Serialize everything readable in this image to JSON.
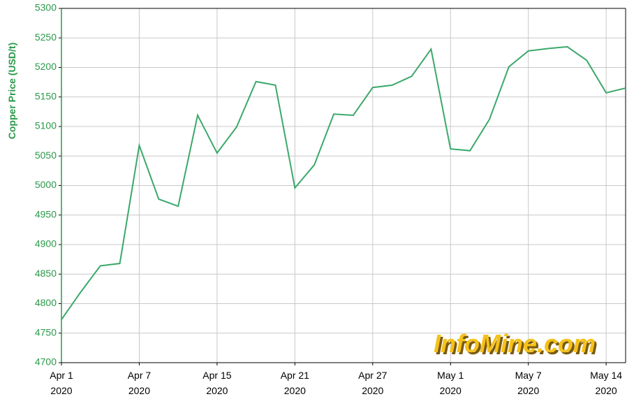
{
  "chart_data": {
    "type": "line",
    "ylabel": "Copper Price (USD/t)",
    "watermark": "InfoMine.com",
    "categories": [
      [
        "Apr 1",
        "2020"
      ],
      null,
      null,
      null,
      [
        "Apr 7",
        "2020"
      ],
      null,
      null,
      null,
      [
        "Apr 15",
        "2020"
      ],
      null,
      null,
      null,
      [
        "Apr 21",
        "2020"
      ],
      null,
      null,
      null,
      [
        "Apr 27",
        "2020"
      ],
      null,
      null,
      null,
      [
        "May 1",
        "2020"
      ],
      null,
      null,
      null,
      [
        "May 7",
        "2020"
      ],
      null,
      null,
      null,
      [
        "May 14",
        "2020"
      ],
      null
    ],
    "series": [
      {
        "name": "Copper Price",
        "color": "#3aa86a",
        "values": [
          4773,
          4820,
          4864,
          4868,
          5068,
          4977,
          4965,
          5119,
          5055,
          5099,
          5176,
          5170,
          4996,
          5035,
          5121,
          5119,
          5166,
          5170,
          5185,
          5231,
          5062,
          5059,
          5112,
          5201,
          5228,
          5232,
          5235,
          5212,
          5157,
          5165
        ]
      }
    ],
    "ylim": [
      4700,
      5300
    ],
    "yticks": [
      4700,
      4750,
      4800,
      4850,
      4900,
      4950,
      5000,
      5050,
      5100,
      5150,
      5200,
      5250,
      5300
    ],
    "grid": true
  }
}
